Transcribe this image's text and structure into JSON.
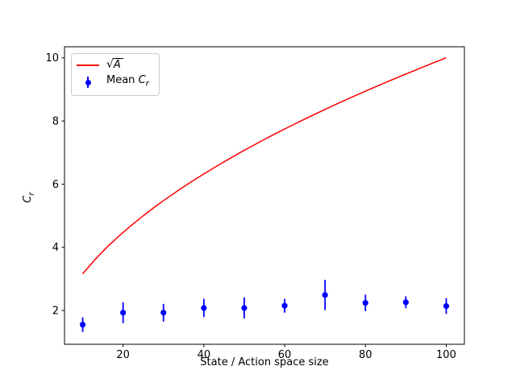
{
  "chart_data": {
    "type": "line",
    "title": "",
    "xlabel": "State / Action space size",
    "ylabel": "Cr",
    "ylabel_symbol": "C",
    "ylabel_sub": "r",
    "xlim": [
      5.5,
      104.5
    ],
    "ylim": [
      0.93,
      10.35
    ],
    "x_ticks": [
      20,
      40,
      60,
      80,
      100
    ],
    "y_ticks": [
      2,
      4,
      6,
      8,
      10
    ],
    "grid": false,
    "colors": {
      "sqrt_line": "#ff0000",
      "errorbar": "#0000ff"
    },
    "legend": {
      "position": "upper left",
      "entries": [
        {
          "label": "sqrt(A)",
          "radical": "√",
          "radicand": "A",
          "type": "line",
          "color": "#ff0000"
        },
        {
          "label": "Mean Cr",
          "text": "Mean ",
          "symbol": "C",
          "sub": "r",
          "type": "errorbar",
          "color": "#0000ff"
        }
      ]
    },
    "series": [
      {
        "name": "sqrt(A)",
        "type": "line",
        "color": "#ff0000",
        "x": [
          10,
          13,
          16,
          19,
          22,
          25,
          28,
          31,
          34,
          37,
          40,
          43,
          46,
          49,
          52,
          55,
          58,
          61,
          64,
          67,
          70,
          73,
          76,
          79,
          82,
          85,
          88,
          91,
          94,
          97,
          100
        ],
        "y": [
          3.162,
          3.606,
          4.0,
          4.359,
          4.69,
          5.0,
          5.292,
          5.568,
          5.831,
          6.083,
          6.325,
          6.557,
          6.782,
          7.0,
          7.211,
          7.416,
          7.616,
          7.81,
          8.0,
          8.185,
          8.367,
          8.544,
          8.718,
          8.888,
          9.055,
          9.22,
          9.381,
          9.539,
          9.695,
          9.849,
          10.0
        ]
      },
      {
        "name": "Mean Cr",
        "type": "errorbar",
        "color": "#0000ff",
        "x": [
          10,
          20,
          30,
          40,
          50,
          60,
          70,
          80,
          90,
          100
        ],
        "y": [
          1.55,
          1.93,
          1.93,
          2.08,
          2.08,
          2.15,
          2.49,
          2.24,
          2.26,
          2.14
        ],
        "yerr": [
          0.23,
          0.33,
          0.28,
          0.29,
          0.33,
          0.22,
          0.48,
          0.26,
          0.19,
          0.25
        ]
      }
    ]
  }
}
